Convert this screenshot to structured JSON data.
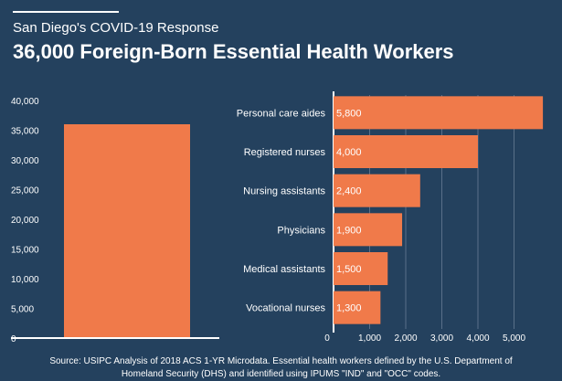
{
  "header": {
    "subtitle": "San Diego's COVID-19 Response",
    "title": "36,000 Foreign-Born Essential Health Workers"
  },
  "source": {
    "line1": "Source: USIPC Analysis of 2018 ACS 1-YR Microdata. Essential health workers defined by the U.S. Department of",
    "line2": "Homeland Security (DHS) and identified using IPUMS \"IND\" and \"OCC\" codes."
  },
  "colors": {
    "background": "#24415e",
    "bar": "#f07a4a",
    "text": "#ffffff",
    "grid": "#5a7089"
  },
  "chart_data": [
    {
      "type": "bar",
      "orientation": "vertical",
      "categories": [
        ""
      ],
      "values": [
        36000
      ],
      "title": "",
      "xlabel": "",
      "ylabel": "",
      "ylim": [
        0,
        40000
      ],
      "yticks": [
        0,
        5000,
        10000,
        15000,
        20000,
        25000,
        30000,
        35000,
        40000
      ],
      "ytick_labels": [
        "0",
        "5,000",
        "10,000",
        "15,000",
        "20,000",
        "25,000",
        "30,000",
        "35,000",
        "40,000"
      ],
      "grid": false
    },
    {
      "type": "bar",
      "orientation": "horizontal",
      "categories": [
        "Personal care aides",
        "Registered nurses",
        "Nursing assistants",
        "Physicians",
        "Medical assistants",
        "Vocational nurses"
      ],
      "values": [
        5800,
        4000,
        2400,
        1900,
        1500,
        1300
      ],
      "data_labels": [
        "5,800",
        "4,000",
        "2,400",
        "1,900",
        "1,500",
        "1,300"
      ],
      "title": "",
      "xlabel": "",
      "ylabel": "",
      "xlim": [
        0,
        6000
      ],
      "xticks": [
        0,
        1000,
        2000,
        3000,
        4000,
        5000
      ],
      "xtick_labels": [
        "0",
        "1,000",
        "2,000",
        "3,000",
        "4,000",
        "5,000"
      ],
      "grid": true
    }
  ]
}
